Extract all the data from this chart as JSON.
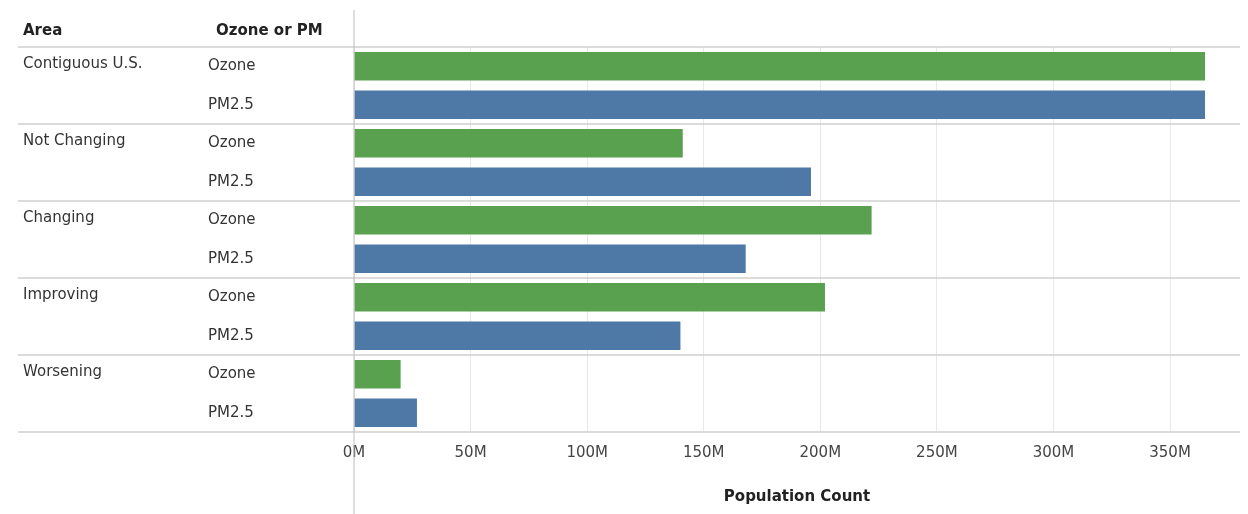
{
  "chart_data": {
    "type": "bar",
    "orientation": "horizontal",
    "xlabel": "Population Count",
    "annotations": [
      "Area",
      "Ozone or PM",
      "Contiguous U.S.",
      "Not Changing",
      "Changing",
      "Improving",
      "Worsening"
    ],
    "categories": [
      "Ozone",
      "PM2.5",
      "Ozone",
      "PM2.5",
      "Ozone",
      "PM2.5",
      "Ozone",
      "PM2.5",
      "Ozone",
      "PM2.5"
    ],
    "values": [
      365,
      365,
      141,
      196,
      222,
      168,
      202,
      140,
      20,
      27
    ],
    "colors": [
      "#59a14f",
      "#4e79a7",
      "#59a14f",
      "#4e79a7",
      "#59a14f",
      "#4e79a7",
      "#59a14f",
      "#4e79a7",
      "#59a14f",
      "#4e79a7"
    ],
    "xlim": [
      0,
      380
    ],
    "xticks": [
      {
        "value": 0,
        "label": "0M"
      },
      {
        "value": 50,
        "label": "50M"
      },
      {
        "value": 100,
        "label": "100M"
      },
      {
        "value": 150,
        "label": "150M"
      },
      {
        "value": 200,
        "label": "200M"
      },
      {
        "value": 250,
        "label": "250M"
      },
      {
        "value": 300,
        "label": "300M"
      },
      {
        "value": 350,
        "label": "350M"
      }
    ],
    "grid": "x",
    "legend": false
  }
}
